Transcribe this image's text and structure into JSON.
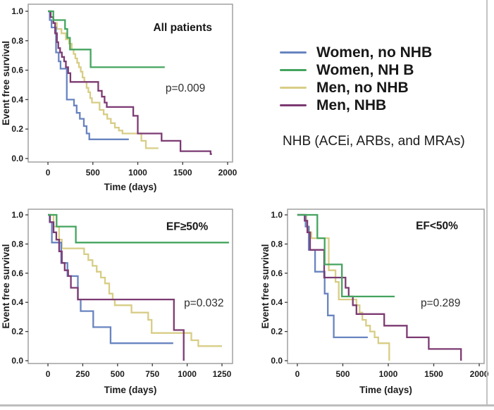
{
  "colors": {
    "women_no_nhb": "#6884c0",
    "women_nhb": "#44a45e",
    "men_no_nhb": "#d8cd86",
    "men_nhb": "#7c3a72",
    "axis_line": "#9a9a9a",
    "tick_line": "#3a3a3a",
    "text": "#1c1c1c",
    "figure_border": "#c4c4c4"
  },
  "legend": {
    "position": "outside-top-right",
    "items": [
      {
        "key": "women_no_nhb",
        "label": "Women, no NHB"
      },
      {
        "key": "women_nhb",
        "label": "Women, NH B"
      },
      {
        "key": "men_no_nhb",
        "label": "Men, no NHB"
      },
      {
        "key": "men_nhb",
        "label": "Men, NHB"
      }
    ],
    "note": "NHB (ACEi, ARBs, and MRAs)"
  },
  "chart_data": [
    {
      "key": "all_patients",
      "type": "line",
      "subtype": "kaplan-meier-step",
      "title": "All patients",
      "p_value": "p=0.009",
      "xlabel": "Time (days)",
      "ylabel": "Event free survival",
      "xticks": [
        0,
        500,
        1000,
        1500,
        2000
      ],
      "yticks": [
        0.0,
        0.2,
        0.4,
        0.6,
        0.8,
        1.0
      ],
      "xlim": [
        -220,
        2055
      ],
      "ylim": [
        0,
        1
      ],
      "grid": false,
      "annotations": {
        "title": {
          "x": 1500,
          "y": 0.89
        },
        "p": {
          "x": 1530,
          "y": 0.478
        }
      },
      "series": [
        {
          "name": "Men, no NHB",
          "color": "men_no_nhb",
          "points": [
            [
              0,
              1.0
            ],
            [
              30,
              0.96
            ],
            [
              60,
              0.92
            ],
            [
              100,
              0.88
            ],
            [
              150,
              0.85
            ],
            [
              200,
              0.81
            ],
            [
              235,
              0.78
            ],
            [
              265,
              0.74
            ],
            [
              285,
              0.71
            ],
            [
              305,
              0.68
            ],
            [
              325,
              0.65
            ],
            [
              345,
              0.62
            ],
            [
              365,
              0.59
            ],
            [
              385,
              0.55
            ],
            [
              405,
              0.52
            ],
            [
              430,
              0.48
            ],
            [
              450,
              0.45
            ],
            [
              470,
              0.41
            ],
            [
              490,
              0.38
            ],
            [
              575,
              0.33
            ],
            [
              620,
              0.3
            ],
            [
              660,
              0.27
            ],
            [
              700,
              0.24
            ],
            [
              745,
              0.21
            ],
            [
              790,
              0.19
            ],
            [
              830,
              0.17
            ],
            [
              1040,
              0.12
            ],
            [
              1090,
              0.07
            ],
            [
              1230,
              0.07
            ]
          ]
        },
        {
          "name": "Women, no NHB",
          "color": "women_no_nhb",
          "points": [
            [
              0,
              1.0
            ],
            [
              20,
              0.94
            ],
            [
              40,
              0.89
            ],
            [
              90,
              0.72
            ],
            [
              120,
              0.66
            ],
            [
              140,
              0.61
            ],
            [
              210,
              0.4
            ],
            [
              290,
              0.36
            ],
            [
              320,
              0.31
            ],
            [
              355,
              0.27
            ],
            [
              400,
              0.22
            ],
            [
              430,
              0.17
            ],
            [
              460,
              0.13
            ],
            [
              900,
              0.13
            ]
          ]
        },
        {
          "name": "Men, NHB",
          "color": "men_nhb",
          "points": [
            [
              0,
              1.0
            ],
            [
              30,
              0.96
            ],
            [
              60,
              0.92
            ],
            [
              80,
              0.85
            ],
            [
              100,
              0.79
            ],
            [
              115,
              0.75
            ],
            [
              135,
              0.72
            ],
            [
              155,
              0.69
            ],
            [
              180,
              0.66
            ],
            [
              200,
              0.62
            ],
            [
              225,
              0.58
            ],
            [
              250,
              0.52
            ],
            [
              560,
              0.46
            ],
            [
              600,
              0.42
            ],
            [
              630,
              0.38
            ],
            [
              655,
              0.35
            ],
            [
              950,
              0.29
            ],
            [
              1000,
              0.17
            ],
            [
              1265,
              0.12
            ],
            [
              1475,
              0.05
            ],
            [
              1810,
              0.03
            ],
            [
              1825,
              0.03
            ]
          ]
        },
        {
          "name": "Women, NHB",
          "color": "women_nhb",
          "points": [
            [
              0,
              1.0
            ],
            [
              60,
              0.94
            ],
            [
              190,
              0.88
            ],
            [
              215,
              0.82
            ],
            [
              245,
              0.74
            ],
            [
              475,
              0.62
            ],
            [
              1300,
              0.62
            ]
          ]
        }
      ]
    },
    {
      "key": "ef_ge_50",
      "type": "line",
      "subtype": "kaplan-meier-step",
      "title": "EF≥50%",
      "p_value": "p=0.032",
      "xlabel": "Time (days)",
      "ylabel": "Event free survival",
      "xticks": [
        0,
        250,
        500,
        750,
        1000,
        1250
      ],
      "yticks": [
        0.0,
        0.2,
        0.4,
        0.6,
        0.8,
        1.0
      ],
      "xlim": [
        -142,
        1326
      ],
      "ylim": [
        0,
        1
      ],
      "grid": false,
      "annotations": {
        "title": {
          "x": 1000,
          "y": 0.92
        },
        "p": {
          "x": 1120,
          "y": 0.395
        }
      },
      "series": [
        {
          "name": "Men, no NHB",
          "color": "men_no_nhb",
          "points": [
            [
              0,
              1.0
            ],
            [
              40,
              0.92
            ],
            [
              80,
              0.83
            ],
            [
              100,
              0.77
            ],
            [
              260,
              0.73
            ],
            [
              290,
              0.69
            ],
            [
              320,
              0.65
            ],
            [
              350,
              0.61
            ],
            [
              380,
              0.57
            ],
            [
              410,
              0.53
            ],
            [
              440,
              0.46
            ],
            [
              465,
              0.42
            ],
            [
              480,
              0.38
            ],
            [
              600,
              0.33
            ],
            [
              720,
              0.28
            ],
            [
              745,
              0.19
            ],
            [
              1030,
              0.14
            ],
            [
              1080,
              0.1
            ],
            [
              1250,
              0.1
            ]
          ]
        },
        {
          "name": "Women, no NHB",
          "color": "women_no_nhb",
          "points": [
            [
              0,
              1.0
            ],
            [
              12,
              0.95
            ],
            [
              28,
              0.81
            ],
            [
              95,
              0.67
            ],
            [
              140,
              0.58
            ],
            [
              215,
              0.42
            ],
            [
              235,
              0.34
            ],
            [
              325,
              0.23
            ],
            [
              450,
              0.12
            ],
            [
              900,
              0.12
            ]
          ]
        },
        {
          "name": "Men, NHB",
          "color": "men_nhb",
          "points": [
            [
              0,
              1.0
            ],
            [
              15,
              0.95
            ],
            [
              40,
              0.88
            ],
            [
              60,
              0.83
            ],
            [
              80,
              0.75
            ],
            [
              100,
              0.67
            ],
            [
              120,
              0.62
            ],
            [
              145,
              0.58
            ],
            [
              165,
              0.5
            ],
            [
              215,
              0.42
            ],
            [
              905,
              0.21
            ],
            [
              975,
              0.0
            ]
          ]
        },
        {
          "name": "Women, NHB",
          "color": "women_nhb",
          "points": [
            [
              0,
              1.0
            ],
            [
              62,
              0.92
            ],
            [
              200,
              0.81
            ],
            [
              1300,
              0.81
            ]
          ]
        }
      ]
    },
    {
      "key": "ef_lt_50",
      "type": "line",
      "subtype": "kaplan-meier-step",
      "title": "EF<50%",
      "p_value": "p=0.289",
      "xlabel": "Time (days)",
      "ylabel": "Event free survival",
      "xticks": [
        0,
        500,
        1000,
        1500,
        2000
      ],
      "yticks": [
        0.0,
        0.2,
        0.4,
        0.6,
        0.8,
        1.0
      ],
      "xlim": [
        -108,
        2054
      ],
      "ylim": [
        0,
        1
      ],
      "grid": false,
      "annotations": {
        "title": {
          "x": 1535,
          "y": 0.925
        },
        "p": {
          "x": 1575,
          "y": 0.395
        }
      },
      "series": [
        {
          "name": "Men, no NHB",
          "color": "men_no_nhb",
          "points": [
            [
              0,
              1.0
            ],
            [
              100,
              0.92
            ],
            [
              130,
              0.88
            ],
            [
              155,
              0.84
            ],
            [
              345,
              0.62
            ],
            [
              420,
              0.54
            ],
            [
              455,
              0.42
            ],
            [
              650,
              0.38
            ],
            [
              685,
              0.33
            ],
            [
              715,
              0.28
            ],
            [
              755,
              0.24
            ],
            [
              800,
              0.2
            ],
            [
              850,
              0.16
            ],
            [
              890,
              0.12
            ],
            [
              1010,
              0.0
            ]
          ]
        },
        {
          "name": "Women, no NHB",
          "color": "women_no_nhb",
          "points": [
            [
              0,
              1.0
            ],
            [
              90,
              0.92
            ],
            [
              125,
              0.76
            ],
            [
              195,
              0.61
            ],
            [
              300,
              0.46
            ],
            [
              335,
              0.31
            ],
            [
              400,
              0.16
            ],
            [
              775,
              0.16
            ]
          ]
        },
        {
          "name": "Men, NHB",
          "color": "men_nhb",
          "points": [
            [
              0,
              1.0
            ],
            [
              80,
              0.96
            ],
            [
              110,
              0.88
            ],
            [
              140,
              0.76
            ],
            [
              295,
              0.57
            ],
            [
              530,
              0.5
            ],
            [
              565,
              0.44
            ],
            [
              610,
              0.38
            ],
            [
              650,
              0.32
            ],
            [
              955,
              0.24
            ],
            [
              1205,
              0.16
            ],
            [
              1445,
              0.08
            ],
            [
              1800,
              0.0
            ]
          ]
        },
        {
          "name": "Women, NHB",
          "color": "women_nhb",
          "points": [
            [
              0,
              1.0
            ],
            [
              220,
              0.84
            ],
            [
              300,
              0.66
            ],
            [
              490,
              0.44
            ],
            [
              1070,
              0.44
            ]
          ]
        }
      ]
    }
  ]
}
